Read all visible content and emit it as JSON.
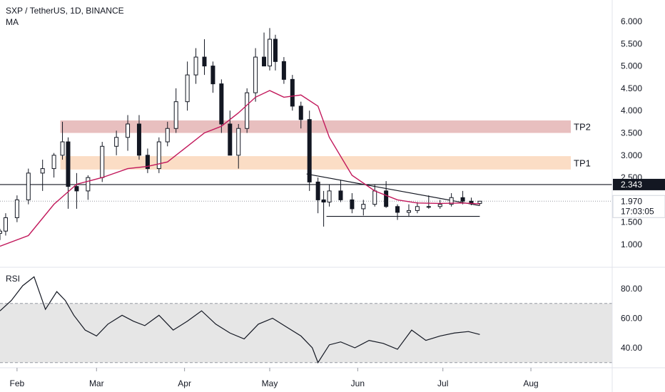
{
  "header": {
    "symbol_line": "SXP / TetherUS, 1D, BINANCE",
    "indicator": "MA"
  },
  "rsi_panel": {
    "title": "RSI"
  },
  "colors": {
    "up": "#131722",
    "down": "#131722",
    "ma": "#c2185b",
    "tp2_zone": "#e6b8b8",
    "tp1_zone": "#fbd9bf",
    "rsi_band": "#e6e6e6",
    "price_badge": "#131722",
    "last_badge": "#ffffff"
  },
  "chart_data": [
    {
      "type": "candlestick",
      "title": "SXP / TetherUS, 1D, BINANCE",
      "x_axis": {
        "labels": [
          "Feb",
          "Mar",
          "Apr",
          "May",
          "Jun",
          "Jul",
          "Aug"
        ]
      },
      "y_axis": {
        "ticks": [
          "6.000",
          "5.500",
          "5.000",
          "4.500",
          "4.000",
          "3.500",
          "3.000",
          "2.500",
          "2.000",
          "1.500",
          "1.000"
        ],
        "range": [
          0.5,
          6.25
        ]
      },
      "zones": [
        {
          "label": "TP2",
          "low": 3.5,
          "high": 3.78
        },
        {
          "label": "TP1",
          "low": 2.68,
          "high": 2.98
        }
      ],
      "horizontal_line": {
        "value": 2.343,
        "label": "2.343"
      },
      "last_price": {
        "value": 1.97,
        "label": "1.970",
        "countdown": "17:03:05"
      },
      "trendlines": [
        {
          "from": [
            "2021-05-14",
            2.58
          ],
          "to": [
            "2021-07-14",
            1.87
          ]
        },
        {
          "from": [
            "2021-05-21",
            1.63
          ],
          "to": [
            "2021-07-14",
            1.63
          ]
        }
      ],
      "series": [
        {
          "kind": "ohlc",
          "start_date": "2021-01-26",
          "x_values": [
            "2021-01-26",
            "2021-01-28",
            "2021-02-01",
            "2021-02-05",
            "2021-02-10",
            "2021-02-14",
            "2021-02-17",
            "2021-02-19",
            "2021-02-22",
            "2021-02-26",
            "2021-03-03",
            "2021-03-08",
            "2021-03-12",
            "2021-03-16",
            "2021-03-19",
            "2021-03-23",
            "2021-03-26",
            "2021-03-29",
            "2021-04-02",
            "2021-04-05",
            "2021-04-08",
            "2021-04-11",
            "2021-04-14",
            "2021-04-17",
            "2021-04-20",
            "2021-04-23",
            "2021-04-26",
            "2021-04-29",
            "2021-05-01",
            "2021-05-03",
            "2021-05-06",
            "2021-05-09",
            "2021-05-12",
            "2021-05-15",
            "2021-05-18",
            "2021-05-20",
            "2021-05-22",
            "2021-05-26",
            "2021-05-30",
            "2021-06-03",
            "2021-06-07",
            "2021-06-11",
            "2021-06-15",
            "2021-06-19",
            "2021-06-22",
            "2021-06-26",
            "2021-06-30",
            "2021-07-04",
            "2021-07-08",
            "2021-07-11",
            "2021-07-14"
          ],
          "open": [
            1.25,
            1.3,
            1.6,
            2.0,
            2.6,
            2.7,
            3.0,
            3.3,
            2.3,
            2.2,
            2.5,
            3.2,
            3.4,
            3.7,
            3.0,
            2.7,
            3.3,
            3.6,
            4.2,
            4.8,
            5.2,
            5.0,
            4.6,
            3.7,
            3.0,
            3.6,
            4.4,
            5.2,
            5.0,
            5.6,
            5.1,
            4.7,
            4.1,
            3.8,
            2.4,
            2.0,
            1.95,
            2.2,
            2.0,
            1.8,
            1.9,
            2.2,
            1.85,
            1.72,
            1.76,
            1.85,
            1.85,
            1.9,
            2.05,
            1.97,
            1.92
          ],
          "high": [
            1.35,
            1.7,
            2.1,
            2.7,
            2.9,
            3.05,
            3.75,
            3.4,
            2.6,
            2.55,
            3.3,
            3.55,
            3.9,
            3.9,
            3.15,
            3.4,
            3.75,
            4.5,
            5.1,
            5.4,
            5.6,
            5.1,
            4.7,
            4.0,
            3.7,
            4.5,
            5.4,
            5.75,
            5.85,
            5.7,
            5.2,
            4.8,
            4.2,
            4.0,
            2.5,
            2.2,
            2.35,
            2.45,
            2.15,
            2.0,
            2.35,
            2.42,
            1.9,
            1.9,
            1.95,
            2.1,
            2.0,
            2.15,
            2.2,
            2.05,
            1.97
          ],
          "low": [
            1.1,
            1.2,
            1.5,
            1.9,
            2.2,
            2.5,
            2.9,
            1.8,
            1.8,
            2.0,
            2.4,
            3.0,
            3.1,
            2.9,
            2.6,
            2.6,
            3.2,
            3.5,
            4.0,
            4.6,
            4.8,
            4.4,
            3.5,
            3.0,
            2.7,
            3.5,
            4.2,
            5.0,
            4.9,
            4.9,
            4.6,
            4.0,
            3.6,
            2.2,
            1.7,
            1.4,
            1.85,
            1.95,
            1.7,
            1.65,
            1.85,
            1.82,
            1.55,
            1.62,
            1.7,
            1.8,
            1.8,
            1.85,
            1.9,
            1.88,
            1.88
          ],
          "close": [
            1.3,
            1.6,
            2.0,
            2.6,
            2.7,
            3.0,
            3.3,
            2.3,
            2.2,
            2.5,
            3.2,
            3.4,
            3.7,
            3.0,
            2.7,
            3.3,
            3.6,
            4.2,
            4.8,
            5.2,
            5.0,
            4.6,
            3.7,
            3.0,
            3.6,
            4.4,
            5.2,
            5.0,
            5.6,
            5.1,
            4.7,
            4.1,
            3.8,
            2.4,
            2.0,
            1.95,
            2.2,
            2.0,
            1.8,
            1.9,
            2.2,
            1.85,
            1.72,
            1.76,
            1.85,
            1.85,
            1.9,
            2.05,
            1.97,
            1.92,
            1.97
          ]
        },
        {
          "kind": "line",
          "name": "MA",
          "x_values": [
            "2021-01-26",
            "2021-02-05",
            "2021-02-14",
            "2021-02-22",
            "2021-03-03",
            "2021-03-12",
            "2021-03-19",
            "2021-03-26",
            "2021-04-02",
            "2021-04-08",
            "2021-04-14",
            "2021-04-20",
            "2021-04-26",
            "2021-05-01",
            "2021-05-06",
            "2021-05-12",
            "2021-05-18",
            "2021-05-22",
            "2021-05-30",
            "2021-06-07",
            "2021-06-15",
            "2021-06-22",
            "2021-06-30",
            "2021-07-08",
            "2021-07-14"
          ],
          "y_values": [
            0.96,
            1.2,
            1.9,
            2.35,
            2.5,
            2.7,
            2.75,
            2.85,
            3.2,
            3.5,
            3.65,
            3.95,
            4.3,
            4.45,
            4.3,
            4.35,
            4.1,
            3.4,
            2.55,
            2.2,
            2.0,
            1.93,
            1.92,
            1.93,
            1.91
          ]
        }
      ]
    },
    {
      "type": "line",
      "title": "RSI",
      "y_axis": {
        "ticks": [
          "80.00",
          "60.00",
          "40.00"
        ],
        "range": [
          27,
          93
        ]
      },
      "band": {
        "low": 30,
        "high": 70
      },
      "series": [
        {
          "name": "RSI",
          "x_values": [
            "2021-01-26",
            "2021-01-30",
            "2021-02-03",
            "2021-02-07",
            "2021-02-11",
            "2021-02-15",
            "2021-02-18",
            "2021-02-21",
            "2021-02-25",
            "2021-03-01",
            "2021-03-05",
            "2021-03-10",
            "2021-03-14",
            "2021-03-18",
            "2021-03-23",
            "2021-03-28",
            "2021-04-02",
            "2021-04-07",
            "2021-04-12",
            "2021-04-17",
            "2021-04-22",
            "2021-04-27",
            "2021-05-02",
            "2021-05-07",
            "2021-05-12",
            "2021-05-16",
            "2021-05-18",
            "2021-05-22",
            "2021-05-26",
            "2021-05-31",
            "2021-06-05",
            "2021-06-10",
            "2021-06-15",
            "2021-06-20",
            "2021-06-25",
            "2021-06-30",
            "2021-07-05",
            "2021-07-10",
            "2021-07-14"
          ],
          "y_values": [
            65,
            72,
            82,
            88,
            66,
            78,
            72,
            62,
            52,
            48,
            56,
            62,
            58,
            55,
            62,
            52,
            58,
            65,
            56,
            50,
            46,
            56,
            60,
            54,
            48,
            40,
            30,
            42,
            44,
            40,
            45,
            43,
            39,
            52,
            45,
            48,
            50,
            51,
            49
          ]
        }
      ]
    }
  ]
}
